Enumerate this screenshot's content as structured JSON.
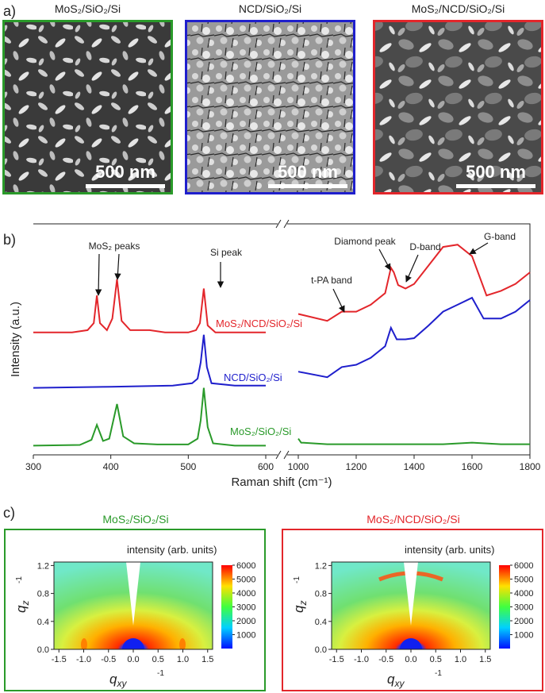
{
  "labels": {
    "a": "a)",
    "b": "b)",
    "c": "c)"
  },
  "sem_images": [
    {
      "title": "MoS₂/SiO₂/Si",
      "color": "#2a9a2a",
      "scale_bar": "500 nm"
    },
    {
      "title": "NCD/SiO₂/Si",
      "color": "#1f1fcc",
      "scale_bar": "500 nm"
    },
    {
      "title": "MoS₂/NCD/SiO₂/Si",
      "color": "#e3262b",
      "scale_bar": "500 nm"
    }
  ],
  "chart_data": [
    {
      "type": "line",
      "ylabel": "Intensity (a.u.)",
      "xlabel": "Raman shift (cm⁻¹)",
      "xlim": [
        300,
        600
      ],
      "xticks": [
        300,
        400,
        500,
        600
      ],
      "ylim": [
        0,
        100
      ],
      "series": [
        {
          "name": "MoS₂/NCD/SiO₂/Si",
          "color": "#e3262b",
          "x": [
            300,
            350,
            370,
            378,
            382,
            386,
            395,
            402,
            408,
            414,
            425,
            450,
            470,
            500,
            510,
            515,
            520,
            525,
            535,
            560,
            600
          ],
          "values": [
            53,
            53,
            54,
            57,
            69,
            57,
            54,
            59,
            76,
            58,
            54,
            54,
            53,
            53,
            54,
            57,
            72,
            56,
            53,
            53,
            53
          ]
        },
        {
          "name": "NCD/SiO₂/Si",
          "color": "#1f1fcc",
          "x": [
            300,
            400,
            480,
            505,
            512,
            516,
            520,
            524,
            530,
            560,
            600
          ],
          "values": [
            29,
            29.5,
            30,
            31,
            33,
            40,
            52,
            38,
            31,
            30,
            30
          ]
        },
        {
          "name": "MoS₂/SiO₂/Si",
          "color": "#2a9a2a",
          "x": [
            300,
            360,
            375,
            382,
            390,
            398,
            408,
            416,
            430,
            460,
            500,
            512,
            516,
            520,
            525,
            532,
            560,
            600
          ],
          "values": [
            4,
            4.3,
            6.5,
            13,
            6,
            7,
            22,
            8,
            5,
            4.5,
            4.5,
            7,
            15,
            29,
            12,
            5,
            4,
            4
          ]
        }
      ],
      "annotations": [
        "MoS₂ peaks",
        "Si peak"
      ]
    },
    {
      "type": "line",
      "xlim": [
        1000,
        1800
      ],
      "xticks": [
        1000,
        1200,
        1400,
        1600,
        1800
      ],
      "ylim": [
        0,
        100
      ],
      "series": [
        {
          "color": "#e3262b",
          "x": [
            1000,
            1100,
            1150,
            1200,
            1250,
            1300,
            1320,
            1330,
            1345,
            1370,
            1400,
            1450,
            1500,
            1550,
            1600,
            1650,
            1700,
            1750,
            1800
          ],
          "values": [
            61,
            58,
            62,
            62,
            65,
            70,
            81,
            79,
            73.5,
            72,
            74,
            82,
            90,
            91,
            86,
            69,
            71,
            74,
            79
          ]
        },
        {
          "color": "#1f1fcc",
          "x": [
            1000,
            1100,
            1150,
            1200,
            1250,
            1300,
            1320,
            1340,
            1370,
            1400,
            1450,
            1500,
            1550,
            1600,
            1640,
            1700,
            1750,
            1800
          ],
          "values": [
            36,
            33.6,
            38,
            39,
            42,
            47,
            55,
            50,
            50,
            50.5,
            56,
            62,
            65,
            68,
            59,
            59,
            62,
            67
          ]
        },
        {
          "color": "#2a9a2a",
          "x": [
            1000,
            1010,
            1100,
            1500,
            1600,
            1700,
            1800
          ],
          "values": [
            7,
            5.3,
            4.6,
            4.6,
            5.3,
            4.6,
            4.6
          ]
        }
      ],
      "annotations": [
        "t-PA band",
        "Diamond peak",
        "D-band",
        "G-band"
      ]
    },
    {
      "type": "heatmap",
      "title": "MoS₂/SiO₂/Si",
      "color": "#2a9a2a",
      "colorbar_label": "intensity (arb. units)",
      "xlabel": {
        "main": "q",
        "sub": "xy",
        "unit": "-1"
      },
      "ylabel": {
        "main": "q",
        "sub": "z",
        "unit": "-1"
      },
      "xlim": [
        -1.6,
        1.6
      ],
      "xticks": [
        -1.5,
        {
          "value": -1,
          "label": "-1.0"
        },
        -0.5,
        {
          "value": 0,
          "label": "0.0"
        },
        0.5,
        {
          "value": 1,
          "label": "1.0"
        },
        1.5
      ],
      "ylim": [
        0,
        1.25
      ],
      "yticks": [
        {
          "value": 0,
          "label": "0.0"
        },
        0.4,
        0.8,
        1.2
      ],
      "clim": [
        0,
        6000
      ],
      "cticks": [
        1000,
        2000,
        3000,
        4000,
        5000,
        6000
      ]
    },
    {
      "type": "heatmap",
      "title": "MoS₂/NCD/SiO₂/Si",
      "color": "#e3262b",
      "colorbar_label": "intensity (arb. units)",
      "xlabel": {
        "main": "q",
        "sub": "xy",
        "unit": "-1"
      },
      "ylabel": {
        "main": "q",
        "sub": "z",
        "unit": "-1"
      },
      "xlim": [
        -1.6,
        1.6
      ],
      "xticks": [
        -1.5,
        {
          "value": -1,
          "label": "-1.0"
        },
        -0.5,
        {
          "value": 0,
          "label": "0.0"
        },
        0.5,
        {
          "value": 1,
          "label": "1.0"
        },
        1.5
      ],
      "ylim": [
        0,
        1.25
      ],
      "yticks": [
        {
          "value": 0,
          "label": "0.0"
        },
        0.4,
        0.8,
        1.2
      ],
      "clim": [
        0,
        6000
      ],
      "cticks": [
        1000,
        2000,
        3000,
        4000,
        5000,
        6000
      ]
    }
  ]
}
